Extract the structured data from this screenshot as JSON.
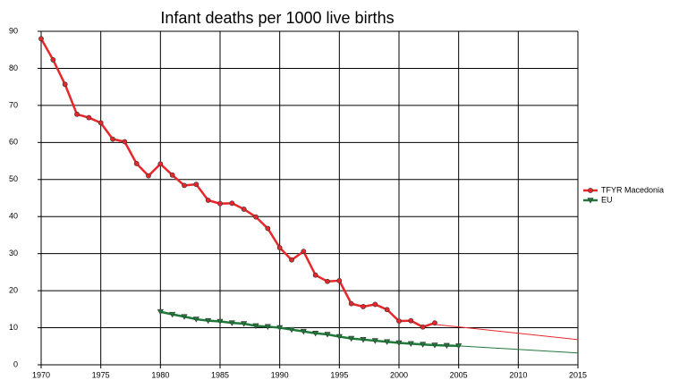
{
  "chart_data": {
    "type": "line",
    "title": "Infant deaths per 1000 live births",
    "xlim": [
      1970,
      2015
    ],
    "xticks": [
      1970,
      1975,
      1980,
      1985,
      1990,
      1995,
      2000,
      2005,
      2010,
      2015
    ],
    "ylim": [
      0,
      90
    ],
    "yticks": [
      0,
      10,
      20,
      30,
      40,
      50,
      60,
      70,
      80,
      90
    ],
    "grid": true,
    "legend": "right",
    "series": [
      {
        "name": "TFYR Macedonia",
        "color": "#e8272a",
        "marker": "circle",
        "x": [
          1970,
          1971,
          1972,
          1973,
          1974,
          1975,
          1976,
          1977,
          1978,
          1979,
          1980,
          1981,
          1982,
          1983,
          1984,
          1985,
          1986,
          1987,
          1988,
          1989,
          1990,
          1991,
          1992,
          1993,
          1994,
          1995,
          1996,
          1997,
          1998,
          1999,
          2000,
          2001,
          2002,
          2003
        ],
        "values": [
          88,
          82.3,
          75.7,
          67.6,
          66.7,
          65.3,
          60.9,
          60.2,
          54.3,
          51.0,
          54.2,
          51.2,
          48.4,
          48.7,
          44.4,
          43.5,
          43.6,
          42.0,
          39.9,
          36.8,
          31.6,
          28.3,
          30.6,
          24.2,
          22.5,
          22.7,
          16.5,
          15.7,
          16.3,
          14.9,
          11.8,
          11.9,
          10.2,
          11.3
        ]
      },
      {
        "name": "EU",
        "color": "#1f7a3a",
        "marker": "triangle-down",
        "x": [
          1980,
          1981,
          1982,
          1983,
          1984,
          1985,
          1986,
          1987,
          1988,
          1989,
          1990,
          1991,
          1992,
          1993,
          1994,
          1995,
          1996,
          1997,
          1998,
          1999,
          2000,
          2001,
          2002,
          2003,
          2004,
          2005
        ],
        "values": [
          14.3,
          13.6,
          13.0,
          12.3,
          11.9,
          11.7,
          11.3,
          11.1,
          10.5,
          10.3,
          10.0,
          9.5,
          9.0,
          8.5,
          8.2,
          7.6,
          7.1,
          6.8,
          6.5,
          6.2,
          5.9,
          5.7,
          5.5,
          5.3,
          5.2,
          5.1
        ]
      }
    ],
    "trends": [
      {
        "color": "#e8272a",
        "x": [
          2003,
          2015
        ],
        "values": [
          10.9,
          6.8
        ]
      },
      {
        "color": "#1f7a3a",
        "x": [
          2005,
          2015
        ],
        "values": [
          5.1,
          3.2
        ]
      }
    ]
  }
}
